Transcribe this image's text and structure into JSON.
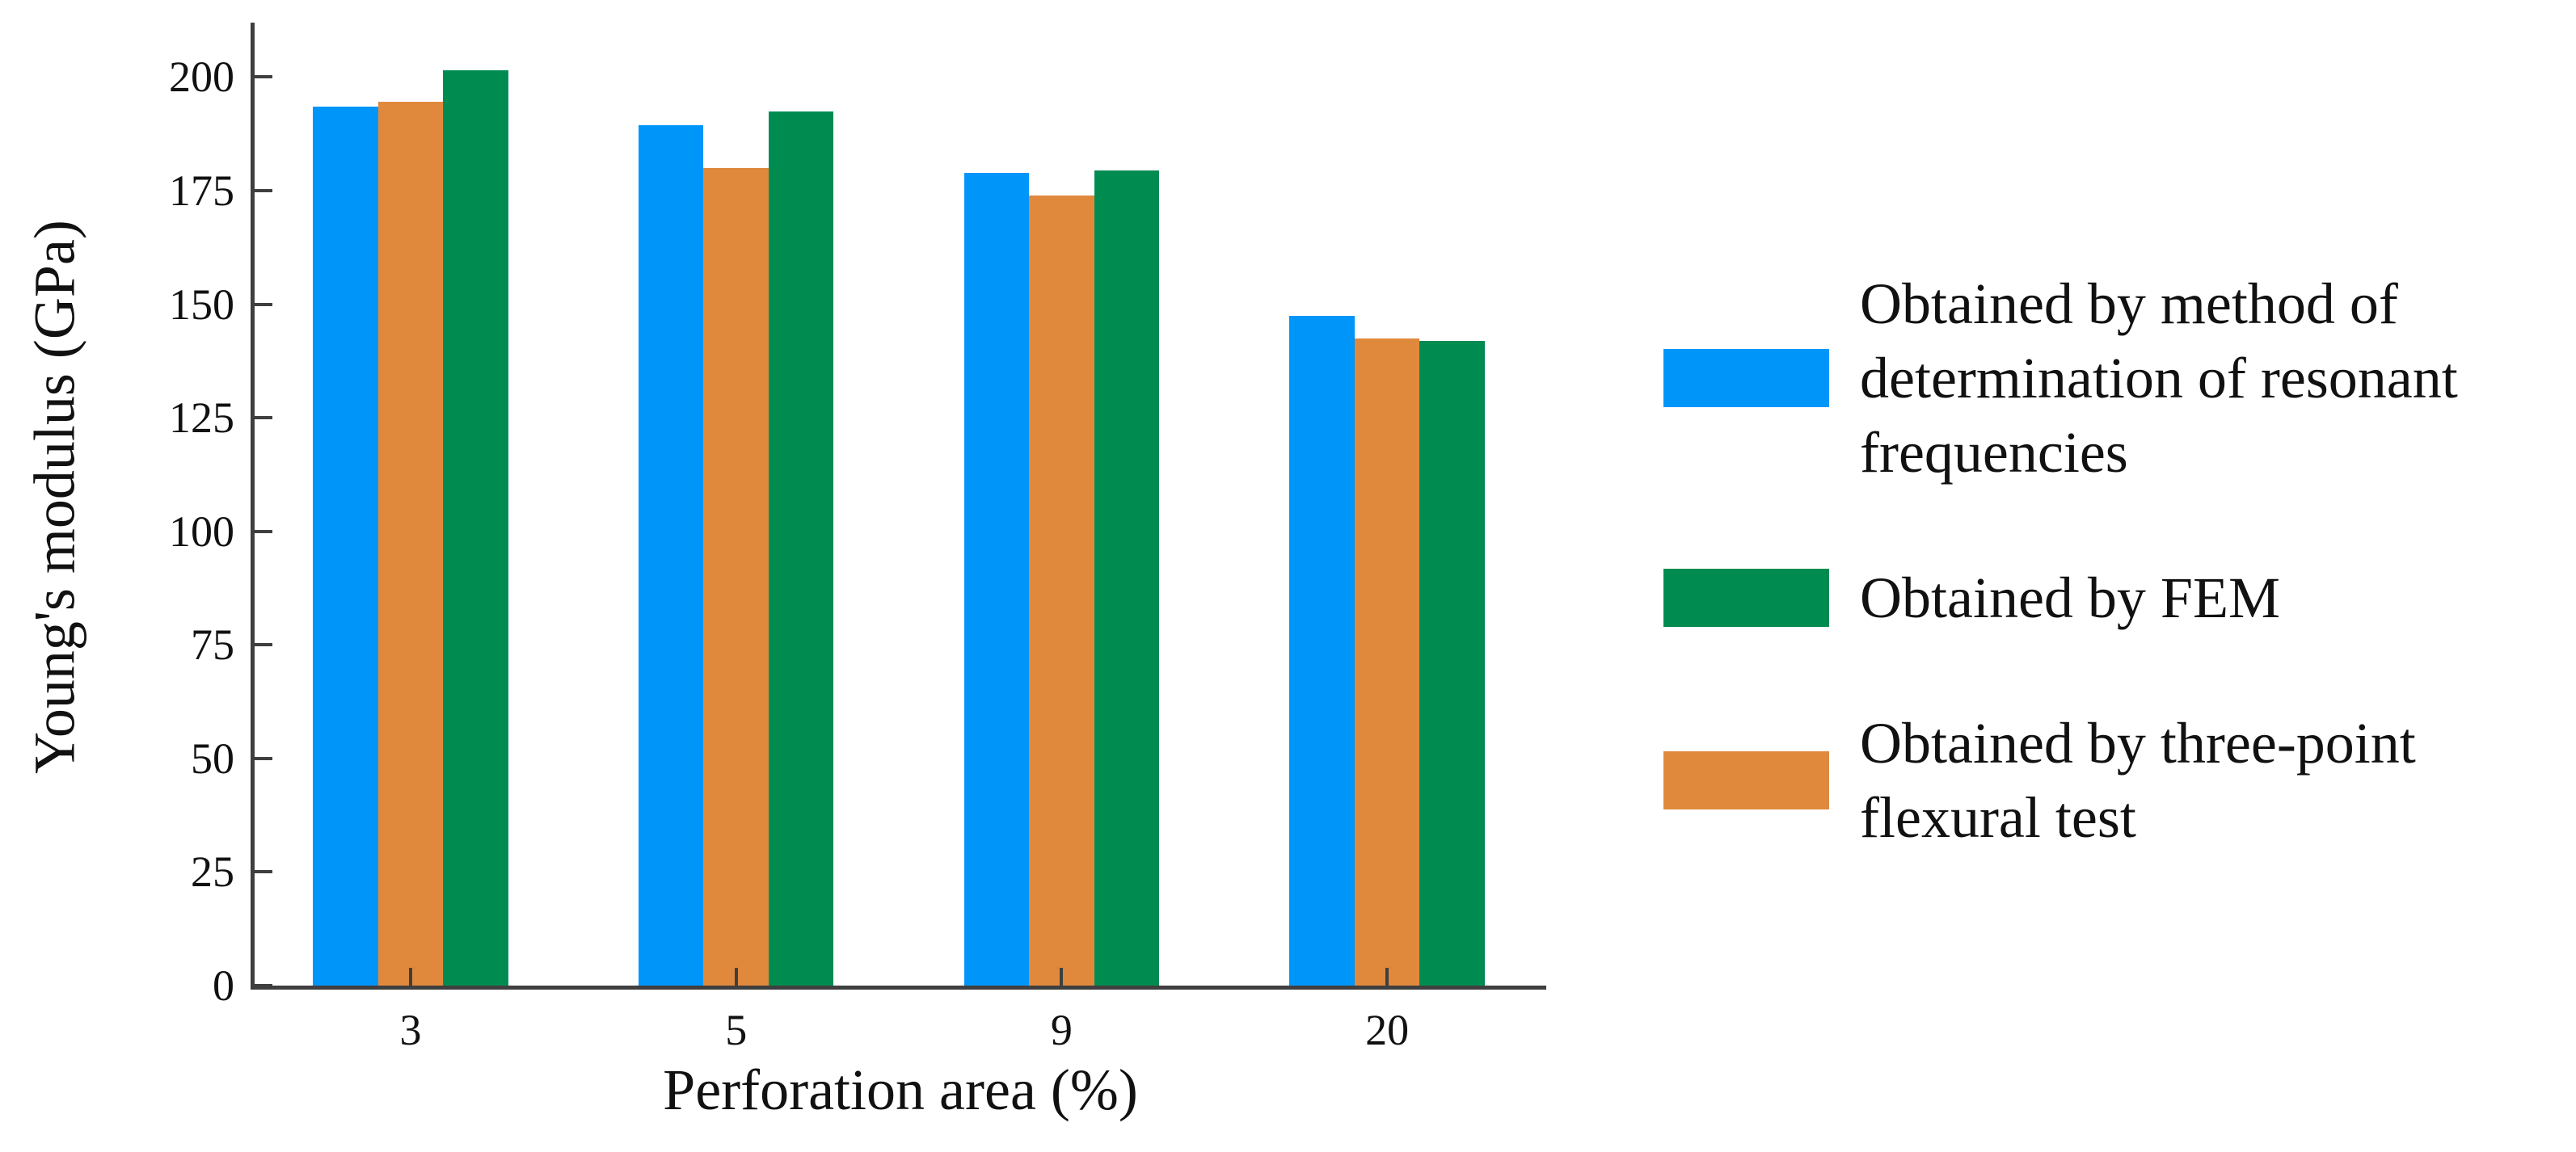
{
  "chart_data": {
    "type": "bar",
    "title": "",
    "xlabel": "Perforation area (%)",
    "ylabel": "Young's modulus (GPa)",
    "categories": [
      "3",
      "5",
      "9",
      "20"
    ],
    "yticks": [
      0,
      25,
      50,
      75,
      100,
      125,
      150,
      175,
      200
    ],
    "ylim": [
      0,
      212
    ],
    "grid": false,
    "legend_position": "right",
    "axis_color": "#3f3f3f",
    "series": [
      {
        "key": "resonant",
        "name": "Obtained by method of determination of resonant frequencies",
        "legend_lines": [
          "Obtained by method of",
          "determination of resonant",
          "frequencies"
        ],
        "color": "#0095F9",
        "values": [
          193.5,
          189.5,
          179,
          147.5
        ]
      },
      {
        "key": "three-point",
        "name": "Obtained by three-point flexural test",
        "legend_lines": [
          "Obtained by three-point",
          "flexural test"
        ],
        "color": "#E0893D",
        "values": [
          194.5,
          180,
          174,
          142.5
        ]
      },
      {
        "key": "fem",
        "name": "Obtained by FEM",
        "legend_lines": [
          "Obtained by FEM"
        ],
        "color": "#008C51",
        "values": [
          201.5,
          192.5,
          179.5,
          142
        ]
      }
    ],
    "legend_order": [
      0,
      2,
      1
    ]
  }
}
